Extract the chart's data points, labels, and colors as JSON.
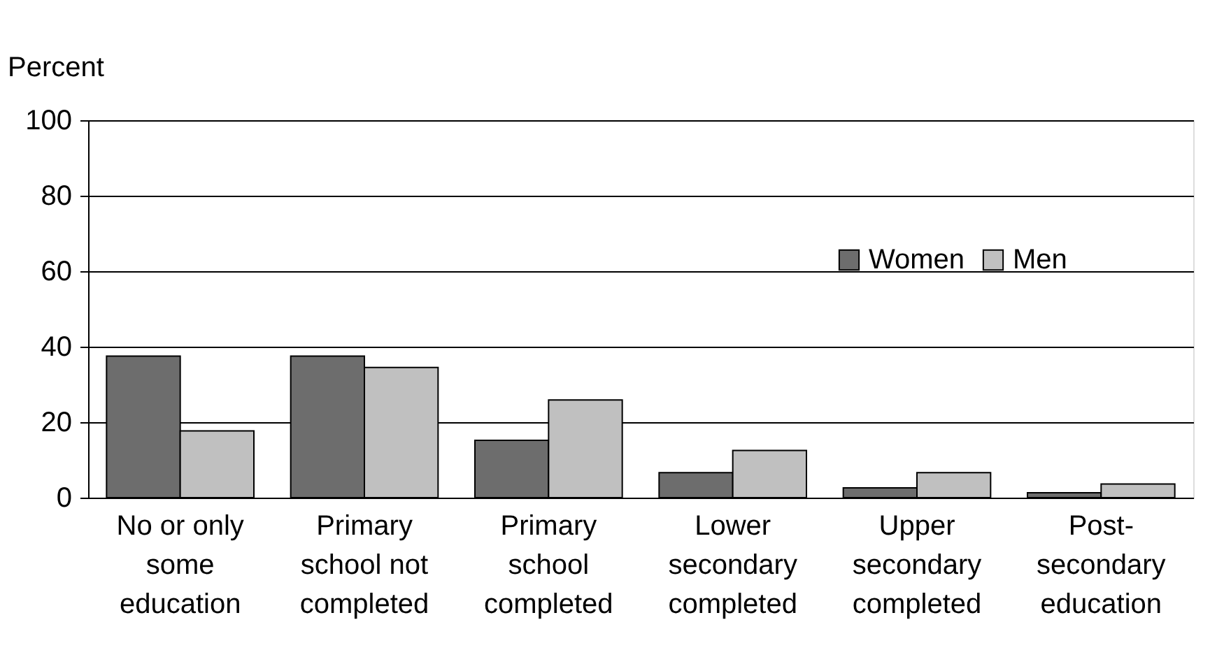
{
  "chart_data": {
    "type": "bar",
    "ylabel": "Percent",
    "categories": [
      "No or only\nsome\neducation",
      "Primary\nschool not\ncompleted",
      "Primary\nschool\ncompleted",
      "Lower\nsecondary\ncompleted",
      "Upper\nsecondary\ncompleted",
      "Post-\nsecondary\neducation"
    ],
    "series": [
      {
        "name": "Women",
        "color": "#6d6d6d",
        "values": [
          37.5,
          37.5,
          15.2,
          6.6,
          2.6,
          1.3
        ]
      },
      {
        "name": "Men",
        "color": "#c0c0c0",
        "values": [
          17.7,
          34.5,
          25.9,
          12.5,
          6.6,
          3.6
        ]
      }
    ],
    "ylim": [
      0,
      100
    ],
    "yticks": [
      0,
      20,
      40,
      60,
      80,
      100
    ],
    "grid": "y",
    "legend": "top right"
  }
}
